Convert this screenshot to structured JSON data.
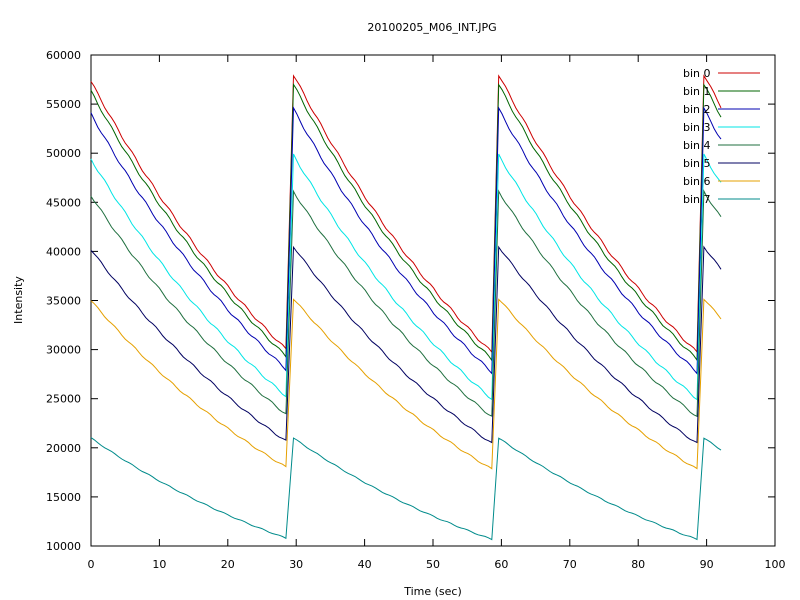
{
  "chart_data": {
    "type": "line",
    "title": "20100205_M06_INT.JPG",
    "xlabel": "Time (sec)",
    "ylabel": "Intensity",
    "xlim": [
      0,
      100
    ],
    "ylim": [
      10000,
      60000
    ],
    "x_ticks": [
      0,
      10,
      20,
      30,
      40,
      50,
      60,
      70,
      80,
      90,
      100
    ],
    "y_ticks": [
      10000,
      15000,
      20000,
      25000,
      30000,
      35000,
      40000,
      45000,
      50000,
      55000,
      60000
    ],
    "grid": false,
    "legend_position": "top-right",
    "cycle_starts": [
      0,
      29.6,
      59.6,
      89.6
    ],
    "cycle_ends": [
      28.9,
      58.9,
      88.9,
      92.4
    ],
    "series": [
      {
        "name": "bin 0",
        "color": "#cc0000",
        "start": 57300,
        "cycle_start": 58000,
        "end": 29500
      },
      {
        "name": "bin 1",
        "color": "#006400",
        "start": 56300,
        "cycle_start": 57000,
        "end": 28800
      },
      {
        "name": "bin 2",
        "color": "#0000b0",
        "start": 54000,
        "cycle_start": 54500,
        "end": 27500
      },
      {
        "name": "bin 3",
        "color": "#00e5e5",
        "start": 49400,
        "cycle_start": 49800,
        "end": 24800
      },
      {
        "name": "bin 4",
        "color": "#1f6f3f",
        "start": 45700,
        "cycle_start": 46100,
        "end": 23000
      },
      {
        "name": "bin 5",
        "color": "#000060",
        "start": 40200,
        "cycle_start": 40500,
        "end": 20300
      },
      {
        "name": "bin 6",
        "color": "#e5a000",
        "start": 35000,
        "cycle_start": 35200,
        "end": 17700
      },
      {
        "name": "bin 7",
        "color": "#008b8b",
        "start": 21000,
        "cycle_start": 21000,
        "end": 10600
      }
    ]
  }
}
